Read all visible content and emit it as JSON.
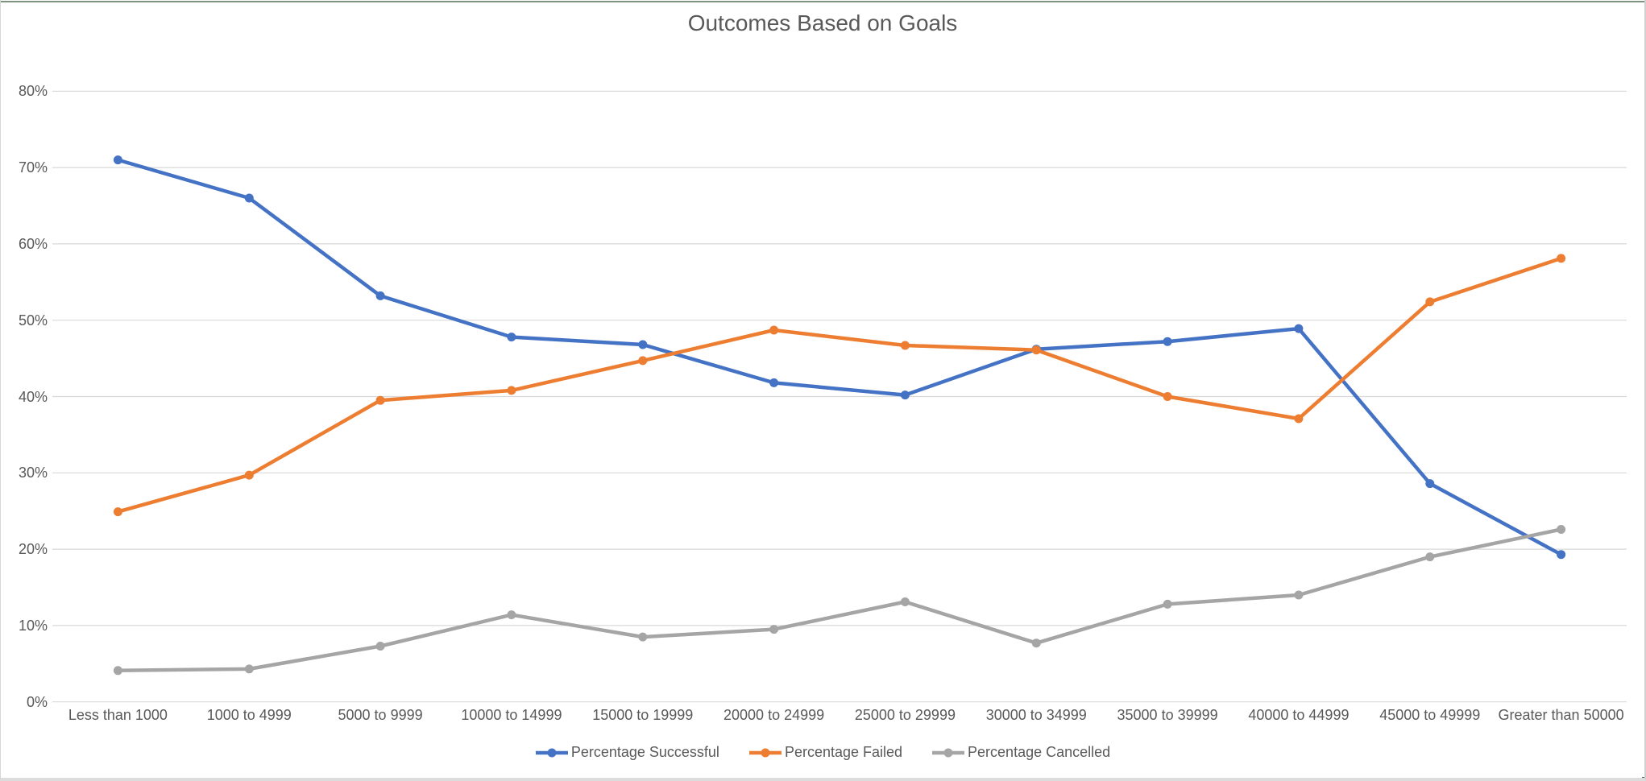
{
  "chart_data": {
    "type": "line",
    "title": "Outcomes Based on Goals",
    "categories": [
      "Less than 1000",
      "1000 to 4999",
      "5000 to 9999",
      "10000 to 14999",
      "15000 to 19999",
      "20000 to 24999",
      "25000 to 29999",
      "30000 to 34999",
      "35000 to 39999",
      "40000 to 44999",
      "45000 to 49999",
      "Greater than 50000"
    ],
    "series": [
      {
        "name": "Percentage Successful",
        "color": "#4472C4",
        "values": [
          71.0,
          66.0,
          53.2,
          47.8,
          46.8,
          41.8,
          40.2,
          46.2,
          47.2,
          48.9,
          28.6,
          19.3
        ]
      },
      {
        "name": "Percentage Failed",
        "color": "#ED7D31",
        "values": [
          24.9,
          29.7,
          39.5,
          40.8,
          44.7,
          48.7,
          46.7,
          46.1,
          40.0,
          37.1,
          52.4,
          58.1
        ]
      },
      {
        "name": "Percentage Cancelled",
        "color": "#A5A5A5",
        "values": [
          4.1,
          4.3,
          7.3,
          11.4,
          8.5,
          9.5,
          13.1,
          7.7,
          12.8,
          14.0,
          19.0,
          22.6
        ]
      }
    ],
    "y_ticks": [
      "0%",
      "10%",
      "20%",
      "30%",
      "40%",
      "50%",
      "60%",
      "70%",
      "80%"
    ],
    "ylim": [
      0,
      80
    ],
    "xlabel": "",
    "ylabel": "",
    "grid": "horizontal",
    "legend_position": "bottom",
    "marker": "circle"
  },
  "colors": {
    "gridline": "#D9D9D9",
    "axis_text": "#595959",
    "title_text": "#595959",
    "top_border": "#7d937f",
    "frame_border": "#d6d6d6",
    "corner_accent": "#44704a"
  }
}
